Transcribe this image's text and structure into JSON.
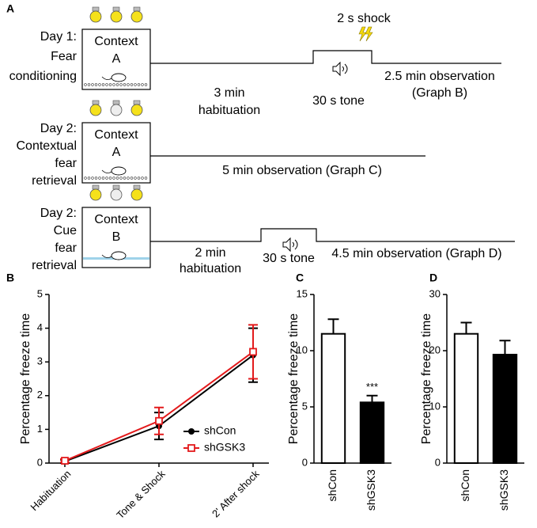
{
  "panel_labels": [
    "A",
    "B",
    "C",
    "D"
  ],
  "diagram": {
    "rows": [
      {
        "day": [
          "Day 1:",
          "Fear",
          "conditioning"
        ],
        "context": [
          "Context",
          "A"
        ],
        "habituation": [
          "3 min",
          "habituation"
        ],
        "tone": "30 s tone",
        "shock": "2 s shock",
        "observation": [
          "2.5 min observation",
          "(Graph B)"
        ]
      },
      {
        "day": [
          "Day 2:",
          "Contextual",
          "fear",
          "retrieval"
        ],
        "context": [
          "Context",
          "A"
        ],
        "observation": [
          "5 min observation (Graph C)"
        ]
      },
      {
        "day": [
          "Day 2:",
          "Cue",
          "fear",
          "retrieval"
        ],
        "context": [
          "Context",
          "B"
        ],
        "habituation": [
          "2 min",
          "habituation"
        ],
        "tone": "30 s tone",
        "observation": [
          "4.5 min observation (Graph D)"
        ]
      }
    ]
  },
  "chart_data": [
    {
      "type": "line",
      "ylabel": "Percentage freeze time",
      "categories": [
        "Habituation",
        "Tone & Shock",
        "2' After shock"
      ],
      "ylim": [
        0,
        5
      ],
      "yticks": [
        0,
        1,
        2,
        3,
        4,
        5
      ],
      "series": [
        {
          "name": "shCon",
          "color": "#000000",
          "marker": "circle",
          "values": [
            0.05,
            1.1,
            3.2
          ],
          "errors": [
            0.05,
            0.4,
            0.8
          ]
        },
        {
          "name": "shGSK3",
          "color": "#e31a1c",
          "marker": "square",
          "values": [
            0.07,
            1.25,
            3.3
          ],
          "errors": [
            0.05,
            0.4,
            0.8
          ]
        }
      ]
    },
    {
      "type": "bar",
      "ylabel": "Percentage freeze time",
      "categories": [
        "shCon",
        "shGSK3"
      ],
      "values": [
        11.5,
        5.4
      ],
      "errors": [
        1.3,
        0.6
      ],
      "colors": [
        "#ffffff",
        "#000000"
      ],
      "ylim": [
        0,
        15
      ],
      "yticks": [
        0,
        5,
        10,
        15
      ],
      "annotations": [
        {
          "text": "***",
          "category": "shGSK3"
        }
      ]
    },
    {
      "type": "bar",
      "ylabel": "Percentage freeze time",
      "categories": [
        "shCon",
        "shGSK3"
      ],
      "values": [
        23,
        19.3
      ],
      "errors": [
        2,
        2.5
      ],
      "colors": [
        "#ffffff",
        "#000000"
      ],
      "ylim": [
        0,
        30
      ],
      "yticks": [
        0,
        10,
        20,
        30
      ]
    }
  ]
}
